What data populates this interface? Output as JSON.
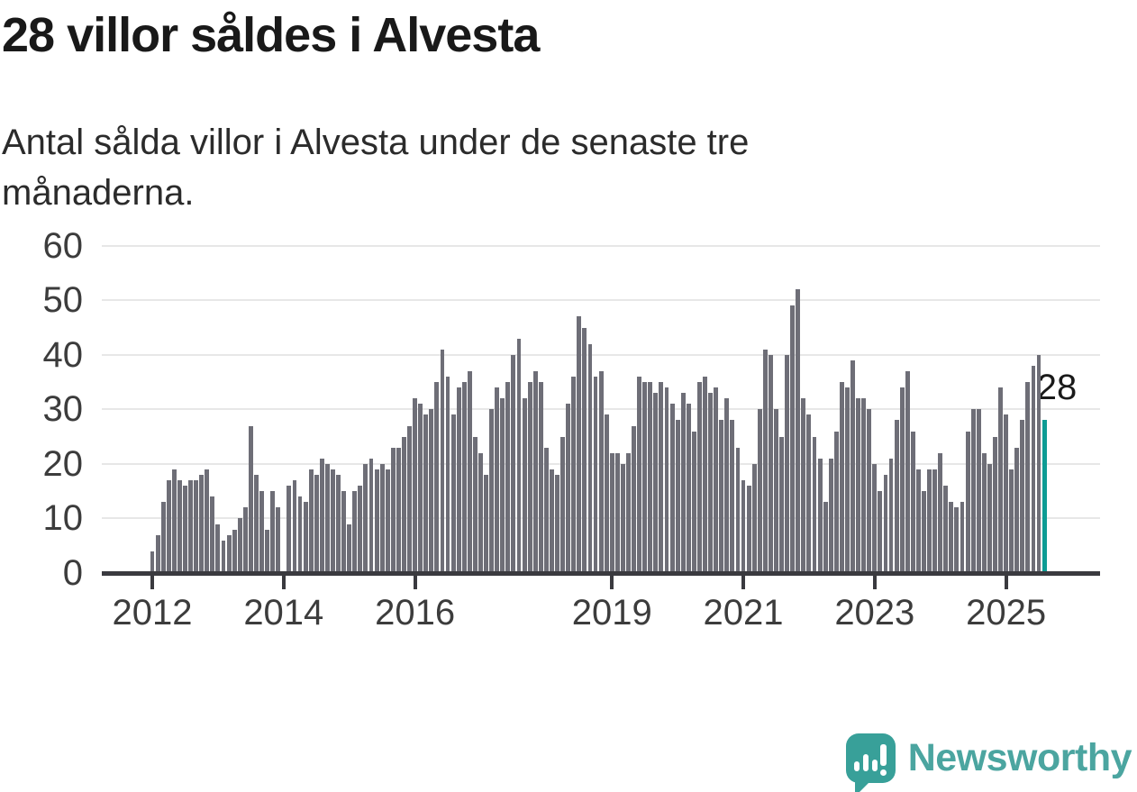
{
  "title": "28 villor såldes i Alvesta",
  "subtitle": "Antal sålda villor i Alvesta under de senaste tre månaderna.",
  "annotation": {
    "label": "28"
  },
  "logo": {
    "text": "Newsworthy",
    "icon": "speech-bubble-bar-chart-exclamation"
  },
  "colors": {
    "bar": "#6e6e77",
    "highlight": "#0d9c94",
    "axis": "#3a3a3f",
    "grid": "#e7e7e7",
    "title_text": "#191919",
    "subtitle_text": "#2b2b2b",
    "axis_text": "#3c3c3c",
    "logo_square": "#38a099",
    "logo_text": "#4ba5a0"
  },
  "chart_data": {
    "type": "bar",
    "title": "28 villor såldes i Alvesta",
    "subtitle": "Antal sålda villor i Alvesta under de senaste tre månaderna.",
    "x_start_month": "2012-01",
    "x_end_month": "2025-08",
    "ylim": [
      0,
      60
    ],
    "y_ticks": [
      0,
      10,
      20,
      30,
      40,
      50,
      60
    ],
    "grid": true,
    "legend": false,
    "x_ticks": [
      {
        "label": "2012",
        "month_index": 0
      },
      {
        "label": "2014",
        "month_index": 24
      },
      {
        "label": "2016",
        "month_index": 48
      },
      {
        "label": "2019",
        "month_index": 84
      },
      {
        "label": "2021",
        "month_index": 108
      },
      {
        "label": "2023",
        "month_index": 132
      },
      {
        "label": "2025",
        "month_index": 156
      }
    ],
    "values": [
      4,
      7,
      13,
      17,
      19,
      17,
      16,
      17,
      17,
      18,
      19,
      14,
      9,
      6,
      7,
      8,
      10,
      12,
      27,
      18,
      15,
      8,
      15,
      12,
      0,
      16,
      17,
      14,
      13,
      19,
      18,
      21,
      20,
      19,
      18,
      15,
      9,
      15,
      16,
      20,
      21,
      19,
      20,
      19,
      23,
      23,
      25,
      27,
      32,
      31,
      29,
      30,
      35,
      41,
      36,
      29,
      34,
      35,
      37,
      25,
      22,
      18,
      30,
      34,
      32,
      35,
      40,
      43,
      32,
      35,
      37,
      35,
      23,
      19,
      18,
      25,
      31,
      36,
      47,
      45,
      42,
      36,
      37,
      29,
      22,
      22,
      20,
      22,
      27,
      36,
      35,
      35,
      33,
      35,
      34,
      31,
      28,
      33,
      31,
      26,
      35,
      36,
      33,
      34,
      28,
      32,
      28,
      23,
      17,
      16,
      20,
      30,
      41,
      40,
      30,
      25,
      40,
      49,
      52,
      32,
      29,
      25,
      21,
      13,
      21,
      26,
      35,
      34,
      39,
      32,
      32,
      30,
      20,
      15,
      18,
      21,
      28,
      34,
      37,
      26,
      19,
      15,
      19,
      19,
      22,
      16,
      13,
      12,
      13,
      26,
      30,
      30,
      22,
      20,
      25,
      34,
      29,
      19,
      23,
      28,
      35,
      38,
      40,
      28
    ],
    "highlight_last": true,
    "highlight_value": 28
  }
}
